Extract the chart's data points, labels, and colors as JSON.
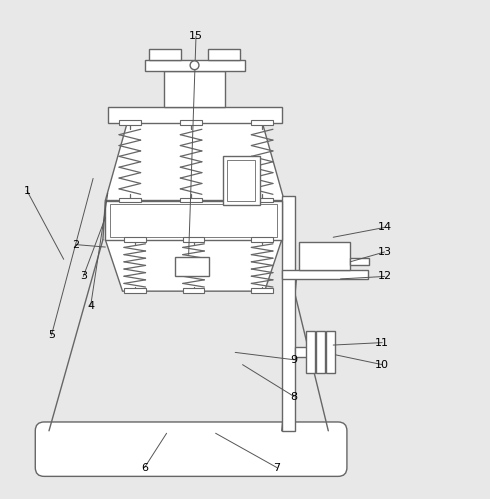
{
  "bg_color": "#e8e8e8",
  "line_color": "#666666",
  "label_color": "#000000",
  "figsize": [
    4.9,
    4.99
  ],
  "dpi": 100,
  "labels_info": [
    [
      1,
      0.055,
      0.62,
      0.13,
      0.48
    ],
    [
      2,
      0.155,
      0.51,
      0.215,
      0.505
    ],
    [
      3,
      0.17,
      0.445,
      0.215,
      0.565
    ],
    [
      4,
      0.185,
      0.385,
      0.22,
      0.615
    ],
    [
      5,
      0.105,
      0.325,
      0.19,
      0.645
    ],
    [
      6,
      0.295,
      0.055,
      0.34,
      0.125
    ],
    [
      7,
      0.565,
      0.055,
      0.44,
      0.125
    ],
    [
      8,
      0.6,
      0.2,
      0.495,
      0.265
    ],
    [
      9,
      0.6,
      0.275,
      0.48,
      0.29
    ],
    [
      10,
      0.78,
      0.265,
      0.685,
      0.285
    ],
    [
      11,
      0.78,
      0.31,
      0.68,
      0.305
    ],
    [
      12,
      0.785,
      0.445,
      0.695,
      0.44
    ],
    [
      13,
      0.785,
      0.495,
      0.715,
      0.475
    ],
    [
      14,
      0.785,
      0.545,
      0.68,
      0.525
    ],
    [
      15,
      0.4,
      0.935,
      0.385,
      0.49
    ]
  ]
}
